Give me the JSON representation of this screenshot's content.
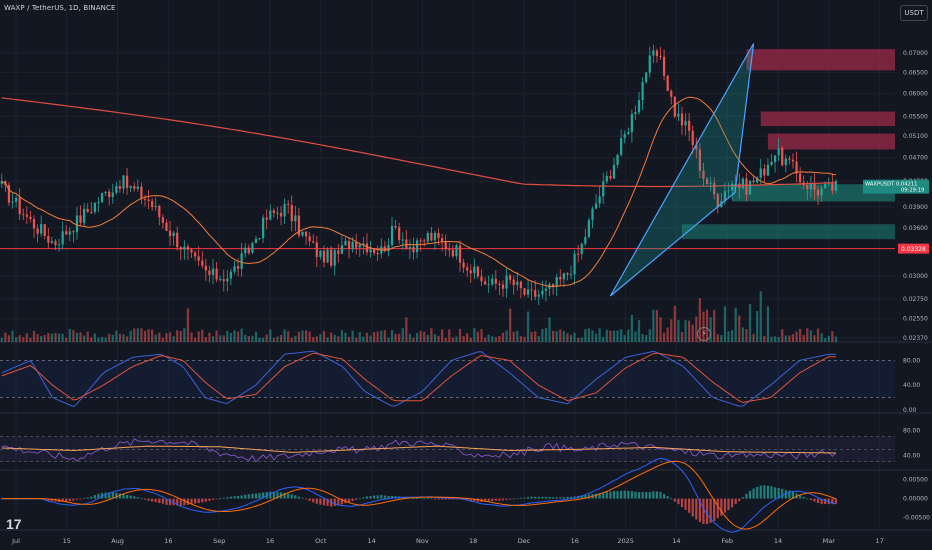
{
  "header": {
    "symbol_title": "WAXP / TetherUS, 1D, BINANCE",
    "currency_badge": "USDT"
  },
  "colors": {
    "up": "#26a69a",
    "down": "#ef5350",
    "ma_orange": "#f57c38",
    "ma_red": "#e24d42",
    "pattern_blue": "#4aa3ff",
    "resistance": "#9c2a4a",
    "support": "#1a6b63",
    "stoch_k": "#3d62d6",
    "stoch_d": "#e2523a"
  },
  "icons": {
    "logo": "tradingview-logo",
    "flash": "lightning-icon"
  },
  "chart_data": [
    {
      "type": "candlestick",
      "name": "price",
      "y_scale": "log",
      "y_ticks": [
        "0.07000",
        "0.06500",
        "0.06000",
        "0.05500",
        "0.05100",
        "0.04700",
        "0.04300",
        "0.03900",
        "0.03600",
        "0.03328",
        "0.03000",
        "0.02750",
        "0.02550",
        "0.02370"
      ],
      "x_ticks": [
        "Jul",
        "15",
        "Aug",
        "16",
        "Sep",
        "16",
        "Oct",
        "14",
        "Nov",
        "18",
        "Dec",
        "16",
        "2025",
        "14",
        "Feb",
        "14",
        "Mar",
        "17"
      ],
      "last_price_label": "WAXPUSDT 0.04211 09:29:19",
      "line_label": "0.03328",
      "ylim": [
        0.0237,
        0.0735
      ],
      "anchors": [
        {
          "x": 0,
          "y": 0.042
        },
        {
          "x": 12,
          "y": 0.037
        },
        {
          "x": 22,
          "y": 0.034
        },
        {
          "x": 32,
          "y": 0.037
        },
        {
          "x": 42,
          "y": 0.0405
        },
        {
          "x": 50,
          "y": 0.043
        },
        {
          "x": 62,
          "y": 0.04
        },
        {
          "x": 70,
          "y": 0.036
        },
        {
          "x": 80,
          "y": 0.032
        },
        {
          "x": 88,
          "y": 0.03
        },
        {
          "x": 96,
          "y": 0.03
        },
        {
          "x": 104,
          "y": 0.033
        },
        {
          "x": 112,
          "y": 0.0375
        },
        {
          "x": 120,
          "y": 0.039
        },
        {
          "x": 126,
          "y": 0.0355
        },
        {
          "x": 134,
          "y": 0.0325
        },
        {
          "x": 140,
          "y": 0.032
        },
        {
          "x": 146,
          "y": 0.034
        },
        {
          "x": 150,
          "y": 0.0345
        },
        {
          "x": 156,
          "y": 0.0335
        },
        {
          "x": 160,
          "y": 0.033
        },
        {
          "x": 166,
          "y": 0.036
        },
        {
          "x": 174,
          "y": 0.033
        },
        {
          "x": 180,
          "y": 0.035
        },
        {
          "x": 186,
          "y": 0.034
        },
        {
          "x": 192,
          "y": 0.033
        },
        {
          "x": 200,
          "y": 0.03
        },
        {
          "x": 206,
          "y": 0.029
        },
        {
          "x": 214,
          "y": 0.0295
        },
        {
          "x": 222,
          "y": 0.0278
        },
        {
          "x": 230,
          "y": 0.0282
        }
      ],
      "stoch_rsi": {
        "k": [
          {
            "x": 0,
            "y": 60
          },
          {
            "x": 8,
            "y": 80
          },
          {
            "x": 14,
            "y": 20
          },
          {
            "x": 20,
            "y": 5
          },
          {
            "x": 28,
            "y": 60
          },
          {
            "x": 36,
            "y": 85
          },
          {
            "x": 44,
            "y": 90
          },
          {
            "x": 50,
            "y": 70
          },
          {
            "x": 56,
            "y": 20
          },
          {
            "x": 62,
            "y": 10
          },
          {
            "x": 70,
            "y": 40
          },
          {
            "x": 78,
            "y": 90
          },
          {
            "x": 86,
            "y": 95
          },
          {
            "x": 94,
            "y": 70
          },
          {
            "x": 100,
            "y": 30
          },
          {
            "x": 108,
            "y": 5
          },
          {
            "x": 116,
            "y": 30
          },
          {
            "x": 124,
            "y": 80
          },
          {
            "x": 132,
            "y": 95
          },
          {
            "x": 140,
            "y": 60
          },
          {
            "x": 148,
            "y": 20
          },
          {
            "x": 156,
            "y": 10
          },
          {
            "x": 164,
            "y": 50
          },
          {
            "x": 172,
            "y": 85
          },
          {
            "x": 180,
            "y": 95
          },
          {
            "x": 188,
            "y": 70
          },
          {
            "x": 196,
            "y": 20
          },
          {
            "x": 204,
            "y": 5
          },
          {
            "x": 212,
            "y": 40
          },
          {
            "x": 220,
            "y": 80
          },
          {
            "x": 228,
            "y": 90
          }
        ],
        "d": [
          {
            "x": 0,
            "y": 55
          },
          {
            "x": 8,
            "y": 72
          },
          {
            "x": 14,
            "y": 40
          },
          {
            "x": 20,
            "y": 15
          },
          {
            "x": 28,
            "y": 40
          },
          {
            "x": 36,
            "y": 70
          },
          {
            "x": 44,
            "y": 88
          },
          {
            "x": 50,
            "y": 80
          },
          {
            "x": 56,
            "y": 45
          },
          {
            "x": 62,
            "y": 18
          },
          {
            "x": 70,
            "y": 25
          },
          {
            "x": 78,
            "y": 70
          },
          {
            "x": 86,
            "y": 92
          },
          {
            "x": 94,
            "y": 82
          },
          {
            "x": 100,
            "y": 50
          },
          {
            "x": 108,
            "y": 15
          },
          {
            "x": 116,
            "y": 15
          },
          {
            "x": 124,
            "y": 55
          },
          {
            "x": 132,
            "y": 88
          },
          {
            "x": 140,
            "y": 80
          },
          {
            "x": 148,
            "y": 40
          },
          {
            "x": 156,
            "y": 15
          },
          {
            "x": 164,
            "y": 28
          },
          {
            "x": 172,
            "y": 68
          },
          {
            "x": 180,
            "y": 92
          },
          {
            "x": 188,
            "y": 85
          },
          {
            "x": 196,
            "y": 45
          },
          {
            "x": 204,
            "y": 12
          },
          {
            "x": 212,
            "y": 20
          },
          {
            "x": 220,
            "y": 60
          },
          {
            "x": 228,
            "y": 86
          }
        ]
      },
      "rsi": {
        "v": [
          {
            "x": 0,
            "y": 55
          },
          {
            "x": 10,
            "y": 45
          },
          {
            "x": 20,
            "y": 35
          },
          {
            "x": 30,
            "y": 55
          },
          {
            "x": 40,
            "y": 65
          },
          {
            "x": 50,
            "y": 62
          },
          {
            "x": 60,
            "y": 45
          },
          {
            "x": 70,
            "y": 35
          },
          {
            "x": 80,
            "y": 40
          },
          {
            "x": 90,
            "y": 50
          },
          {
            "x": 100,
            "y": 48
          },
          {
            "x": 110,
            "y": 62
          },
          {
            "x": 120,
            "y": 58
          },
          {
            "x": 130,
            "y": 42
          },
          {
            "x": 140,
            "y": 40
          },
          {
            "x": 150,
            "y": 55
          },
          {
            "x": 160,
            "y": 48
          },
          {
            "x": 170,
            "y": 60
          },
          {
            "x": 180,
            "y": 52
          },
          {
            "x": 190,
            "y": 45
          },
          {
            "x": 200,
            "y": 38
          },
          {
            "x": 210,
            "y": 42
          },
          {
            "x": 220,
            "y": 40
          },
          {
            "x": 230,
            "y": 45
          }
        ],
        "ma": [
          {
            "x": 0,
            "y": 52
          },
          {
            "x": 20,
            "y": 48
          },
          {
            "x": 40,
            "y": 55
          },
          {
            "x": 60,
            "y": 54
          },
          {
            "x": 80,
            "y": 45
          },
          {
            "x": 100,
            "y": 50
          },
          {
            "x": 120,
            "y": 55
          },
          {
            "x": 140,
            "y": 48
          },
          {
            "x": 160,
            "y": 50
          },
          {
            "x": 180,
            "y": 53
          },
          {
            "x": 200,
            "y": 46
          },
          {
            "x": 230,
            "y": 44
          }
        ]
      }
    },
    {
      "type": "line",
      "name": "stoch_rsi",
      "y_ticks": [
        "80.00",
        "40.00",
        "0.00"
      ],
      "ylim": [
        0,
        100
      ]
    },
    {
      "type": "line",
      "name": "rsi",
      "y_ticks": [
        "80.00",
        "40.00"
      ],
      "ylim": [
        20,
        100
      ]
    },
    {
      "type": "histogram",
      "name": "macd",
      "y_ticks": [
        "0.00500",
        "0.00000",
        "-0.00500"
      ],
      "ylim": [
        -0.0075,
        0.0065
      ]
    }
  ]
}
